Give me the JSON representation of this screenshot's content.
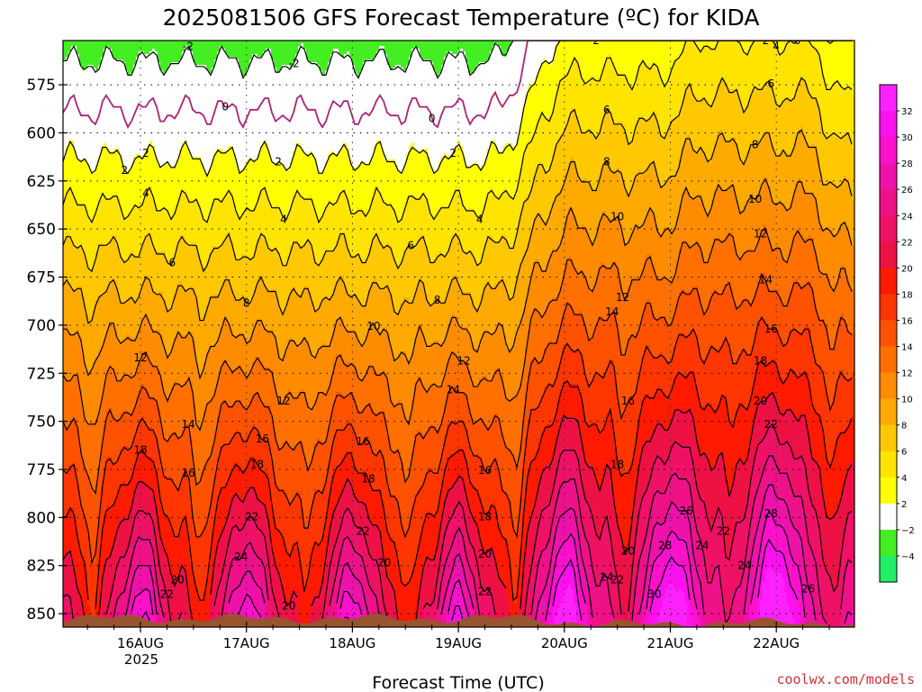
{
  "title": "2025081506 GFS Forecast Temperature (ºC) for KIDA",
  "xlabel": "Forecast Time (UTC)",
  "credit": "coolwx.com/models",
  "year_label": "2025",
  "colors": {
    "lt_m4": "#22ee66",
    "m4_m2": "#44ee22",
    "m2_2": "#ffffff",
    "2_4": "#ffff00",
    "4_6": "#ffe400",
    "6_8": "#ffc800",
    "8_10": "#ffaa00",
    "10_12": "#ff8c00",
    "12_14": "#ff7000",
    "14_16": "#ff5200",
    "16_18": "#ff3600",
    "18_20": "#ff1a00",
    "20_22": "#ee1144",
    "22_24": "#ee1166",
    "24_26": "#ee1188",
    "26_28": "#ee11aa",
    "28_30": "#ff11cc",
    "30_32": "#ff11ee",
    "gt_32": "#ff22ff",
    "ground": "#9a5330",
    "zero_line": "#aa2277"
  },
  "chart_data": {
    "type": "contour",
    "variable": "Temperature (ºC)",
    "x_axis": {
      "label": "Forecast Time (UTC)",
      "ticks": [
        "16AUG",
        "17AUG",
        "18AUG",
        "19AUG",
        "20AUG",
        "21AUG",
        "22AUG"
      ],
      "range": [
        "2025-08-15 06Z",
        "2025-08-22 18Z"
      ]
    },
    "y_axis": {
      "label": "",
      "ticks": [
        575,
        600,
        625,
        650,
        675,
        700,
        725,
        750,
        775,
        800,
        825,
        850
      ],
      "range": [
        552,
        857
      ],
      "scale": "pressure (inverted)"
    },
    "colorbar": {
      "labels": [
        "32",
        "30",
        "28",
        "26",
        "24",
        "22",
        "20",
        "18",
        "16",
        "14",
        "12",
        "10",
        "8",
        "6",
        "4",
        "2",
        "−2",
        "−4"
      ],
      "levels": [
        -4,
        -2,
        2,
        4,
        6,
        8,
        10,
        12,
        14,
        16,
        18,
        20,
        22,
        24,
        26,
        28,
        30,
        32
      ]
    },
    "isotherm_values": [
      -2,
      0,
      2,
      4,
      6,
      8,
      10,
      12,
      14,
      16,
      18,
      20,
      22,
      24,
      26,
      28,
      30
    ],
    "contour_labels": [
      "-2",
      "0",
      "2",
      "4",
      "6",
      "8",
      "10",
      "12",
      "14",
      "16",
      "18",
      "20",
      "22",
      "24",
      "26",
      "28",
      "30"
    ],
    "grid": true
  }
}
